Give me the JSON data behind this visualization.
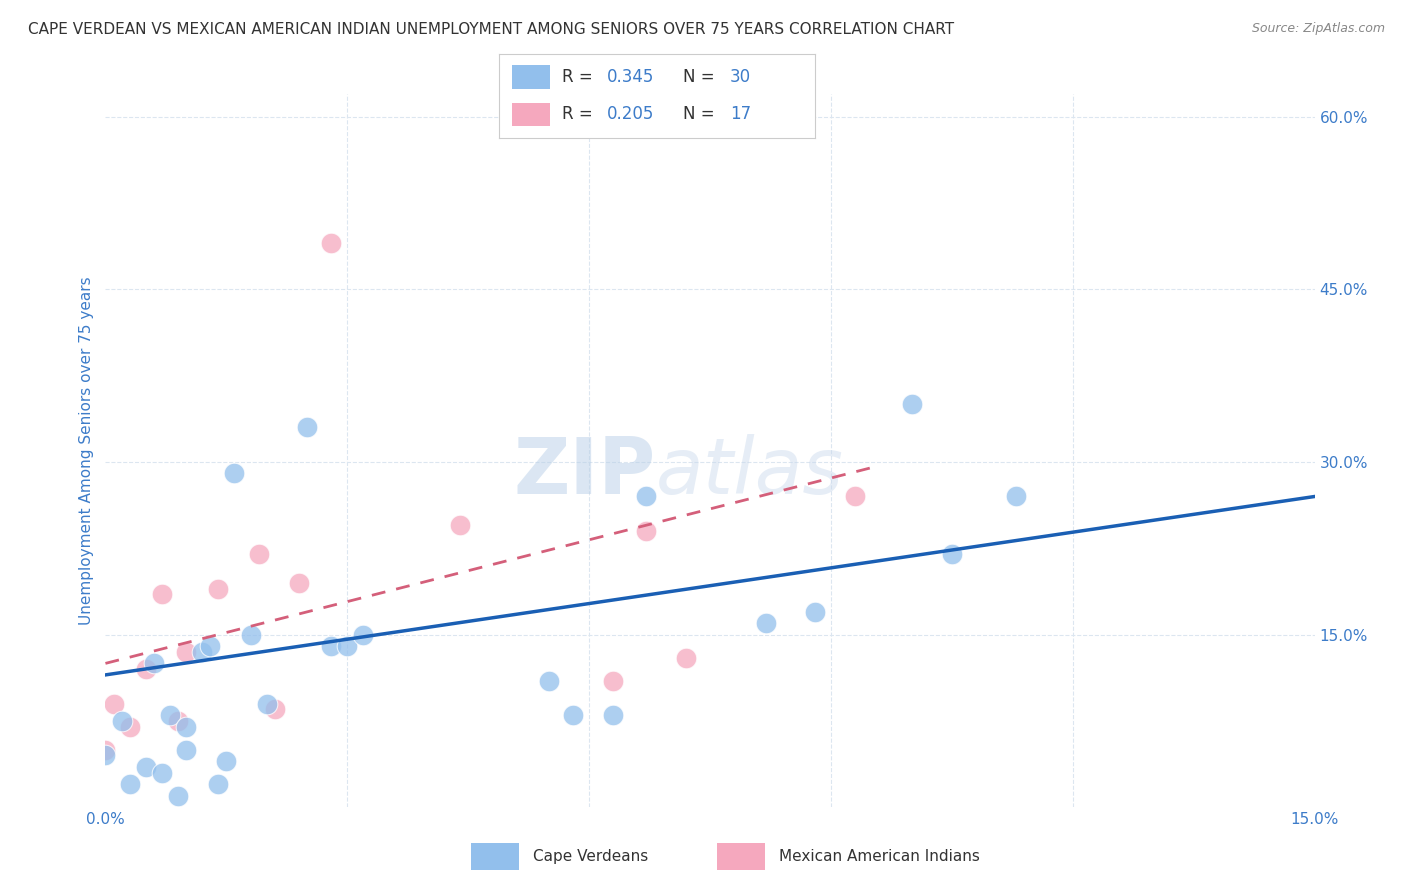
{
  "title": "CAPE VERDEAN VS MEXICAN AMERICAN INDIAN UNEMPLOYMENT AMONG SENIORS OVER 75 YEARS CORRELATION CHART",
  "source": "Source: ZipAtlas.com",
  "ylabel": "Unemployment Among Seniors over 75 years",
  "watermark_zip": "ZIP",
  "watermark_atlas": "atlas",
  "xlim": [
    0.0,
    0.15
  ],
  "ylim": [
    0.0,
    0.62
  ],
  "xticks": [
    0.0,
    0.03,
    0.06,
    0.09,
    0.12,
    0.15
  ],
  "xticklabels": [
    "0.0%",
    "",
    "",
    "",
    "",
    "15.0%"
  ],
  "yticks_right": [
    0.0,
    0.15,
    0.3,
    0.45,
    0.6
  ],
  "ytick_right_labels": [
    "",
    "15.0%",
    "30.0%",
    "45.0%",
    "60.0%"
  ],
  "legend_R1": "0.345",
  "legend_N1": "30",
  "legend_R2": "0.205",
  "legend_N2": "17",
  "blue_color": "#92bfec",
  "pink_color": "#f5a8be",
  "blue_line_color": "#1a5fb4",
  "pink_line_color": "#d45f7a",
  "grid_color": "#dce6f0",
  "title_color": "#333333",
  "source_color": "#888888",
  "axis_color": "#3d7cc9",
  "legend_text_color": "#3d7cc9",
  "blue_scatter_x": [
    0.0,
    0.002,
    0.003,
    0.005,
    0.006,
    0.007,
    0.008,
    0.009,
    0.01,
    0.01,
    0.012,
    0.013,
    0.014,
    0.015,
    0.016,
    0.018,
    0.02,
    0.025,
    0.028,
    0.03,
    0.032,
    0.055,
    0.058,
    0.063,
    0.067,
    0.082,
    0.088,
    0.1,
    0.105,
    0.113
  ],
  "blue_scatter_y": [
    0.045,
    0.075,
    0.02,
    0.035,
    0.125,
    0.03,
    0.08,
    0.01,
    0.05,
    0.07,
    0.135,
    0.14,
    0.02,
    0.04,
    0.29,
    0.15,
    0.09,
    0.33,
    0.14,
    0.14,
    0.15,
    0.11,
    0.08,
    0.08,
    0.27,
    0.16,
    0.17,
    0.35,
    0.22,
    0.27
  ],
  "pink_scatter_x": [
    0.0,
    0.001,
    0.003,
    0.005,
    0.007,
    0.009,
    0.01,
    0.014,
    0.019,
    0.021,
    0.024,
    0.028,
    0.044,
    0.063,
    0.067,
    0.072,
    0.093
  ],
  "pink_scatter_y": [
    0.05,
    0.09,
    0.07,
    0.12,
    0.185,
    0.075,
    0.135,
    0.19,
    0.22,
    0.085,
    0.195,
    0.49,
    0.245,
    0.11,
    0.24,
    0.13,
    0.27
  ],
  "blue_trend_x": [
    0.0,
    0.15
  ],
  "blue_trend_y": [
    0.115,
    0.27
  ],
  "pink_trend_x": [
    0.0,
    0.095
  ],
  "pink_trend_y": [
    0.125,
    0.295
  ],
  "bg_color": "#ffffff"
}
